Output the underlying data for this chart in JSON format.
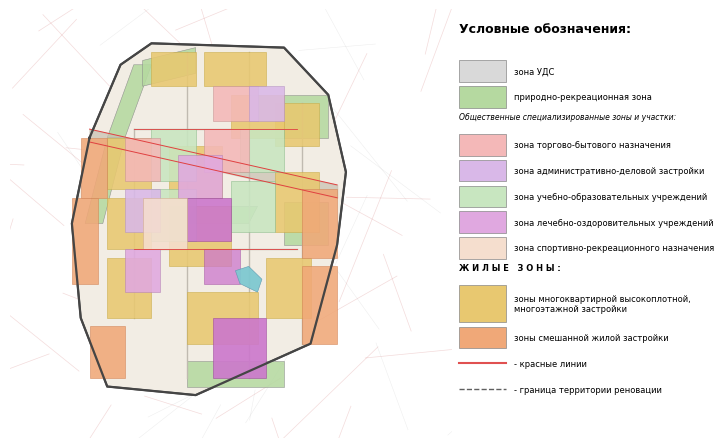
{
  "title": "Условные обозначения:",
  "background_color": "#ffffff",
  "legend_items": [
    {
      "label": "зона УДС",
      "color": "#d9d9d9",
      "type": "patch"
    },
    {
      "label": "природно-рекреационная зона",
      "color": "#b5d9a0",
      "type": "patch"
    },
    {
      "label": "header_public",
      "color": null,
      "type": "header",
      "text": "Общественные специализированные зоны и участки:"
    },
    {
      "label": "зона торгово-бытового назначения",
      "color": "#f4b8b8",
      "type": "patch"
    },
    {
      "label": "зона административно-деловой застройки",
      "color": "#d9b8e8",
      "type": "patch"
    },
    {
      "label": "зона учебно-образовательных учреждений",
      "color": "#c8e6c0",
      "type": "patch"
    },
    {
      "label": "зона лечебно-оздоровительных учреждений",
      "color": "#e0a8e0",
      "type": "patch"
    },
    {
      "label": "зона спортивно-рекреационного назначения",
      "color": "#f5dece",
      "type": "patch"
    },
    {
      "label": "header_zhil",
      "color": null,
      "type": "header_spaced",
      "text": "Ж И Л Ы Е   З О Н Ы :"
    },
    {
      "label": "зоны многоквартирной высокоплотной,\nмногоэтажной застройки",
      "color": "#e8c870",
      "type": "patch_tall"
    },
    {
      "label": "зоны смешанной жилой застройки",
      "color": "#f0a878",
      "type": "patch"
    },
    {
      "label": "- красные линии",
      "color": "#e05050",
      "type": "line"
    },
    {
      "label": "- граница территории реновации",
      "color": "#606060",
      "type": "line_dash"
    }
  ],
  "zone_colors": {
    "uds": "#d9d9d9",
    "recreation": "#b5d9a0",
    "trade": "#f4b8b8",
    "admin": "#d9b8e8",
    "education": "#c8e6c0",
    "medical_light": "#e0a8e0",
    "sport": "#f5dece",
    "residential_high": "#e8c870",
    "residential_mixed": "#f0a878",
    "medical_bright": "#cc77cc"
  }
}
